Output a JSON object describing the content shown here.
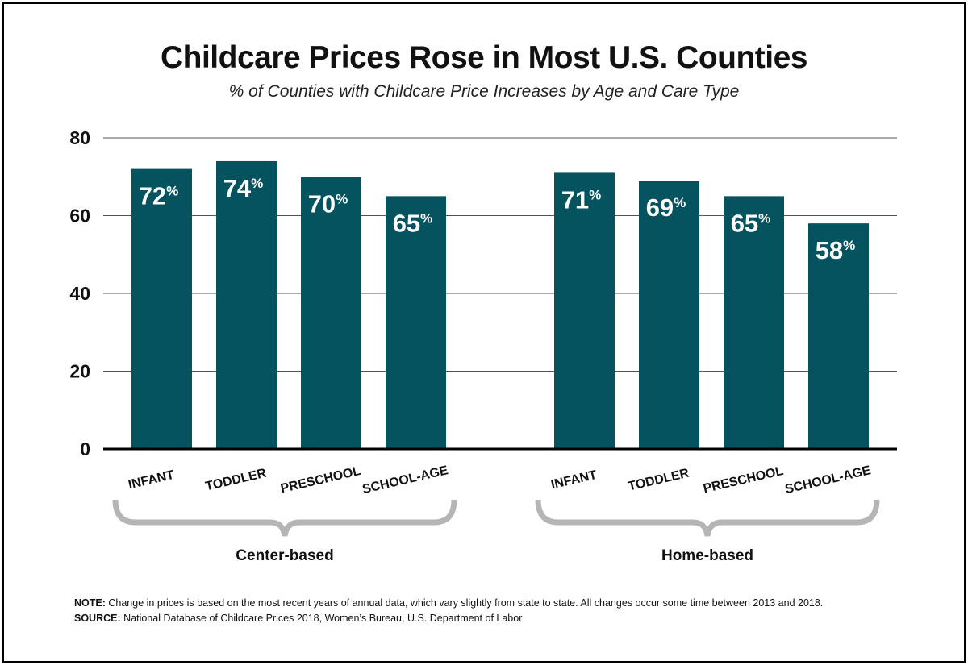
{
  "chart_data": {
    "type": "bar",
    "title": "Childcare Prices Rose in Most U.S. Counties",
    "subtitle": "% of Counties with Childcare Price Increases by Age and Care Type",
    "xlabel": "",
    "ylabel": "",
    "ylim": [
      0,
      80
    ],
    "yticks": [
      0,
      20,
      40,
      60,
      80
    ],
    "grid": true,
    "bar_color": "#04535f",
    "groups": [
      {
        "name": "Center-based",
        "categories": [
          "INFANT",
          "TODDLER",
          "PRESCHOOL",
          "SCHOOL-AGE"
        ],
        "values": [
          72,
          74,
          70,
          65
        ]
      },
      {
        "name": "Home-based",
        "categories": [
          "INFANT",
          "TODDLER",
          "PRESCHOOL",
          "SCHOOL-AGE"
        ],
        "values": [
          71,
          69,
          65,
          58
        ]
      }
    ],
    "value_suffix": "%"
  },
  "footer": {
    "note_label": "NOTE:",
    "note_text": " Change in prices is based on the most recent years of annual data, which vary slightly from state to state. All changes occur some time between 2013 and 2018.",
    "source_label": "SOURCE:",
    "source_text": " National Database of Childcare Prices 2018, Women’s Bureau, U.S. Department of Labor"
  }
}
